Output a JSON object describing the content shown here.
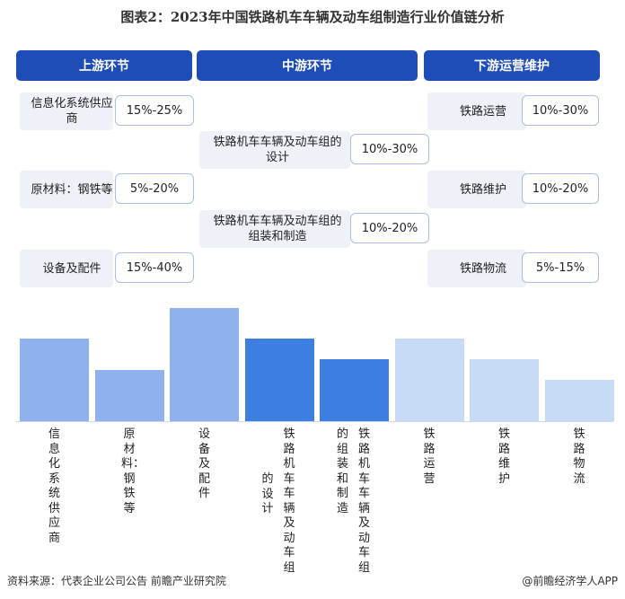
{
  "title": "图表2：2023年中国铁路机车车辆及动车组制造行业价值链分析",
  "headers": {
    "upstream": "上游环节",
    "midstream": "中游环节",
    "downstream": "下游运营维护"
  },
  "upstream": [
    {
      "label": "信息化系统供应商",
      "pct": "15%-25%"
    },
    {
      "label": "原材料：钢铁等",
      "pct": "5%-20%"
    },
    {
      "label": "设备及配件",
      "pct": "15%-40%"
    }
  ],
  "midstream": [
    {
      "label": "铁路机车车辆及动车组的设计",
      "pct": "10%-30%"
    },
    {
      "label": "铁路机车车辆及动车组的组装和制造",
      "pct": "10%-20%"
    }
  ],
  "downstream": [
    {
      "label": "铁路运营",
      "pct": "10%-30%"
    },
    {
      "label": "铁路维护",
      "pct": "10%-20%"
    },
    {
      "label": "铁路物流",
      "pct": "5%-15%"
    }
  ],
  "chart_data": {
    "type": "bar",
    "categories": [
      "信息化系统供应商",
      "原材料：钢铁等",
      "设备及配件",
      "铁路机车车辆及动车组的设计",
      "铁路机车车辆及动车组的组装和制造",
      "铁路运营",
      "铁路维护",
      "铁路物流"
    ],
    "values": [
      20,
      12.5,
      27.5,
      20,
      15,
      20,
      15,
      10
    ],
    "colors": [
      "#8fb2ee",
      "#8fb2ee",
      "#8fb2ee",
      "#3d7fe0",
      "#3d7fe0",
      "#c7dbf7",
      "#c7dbf7",
      "#c7dbf7"
    ],
    "ylim": [
      0,
      27.5
    ]
  },
  "footer": {
    "source": "资料来源：代表企业公司公告 前瞻产业研究院",
    "brand": "@前瞻经济学人APP"
  },
  "watermark": "前瞻产业研究院"
}
